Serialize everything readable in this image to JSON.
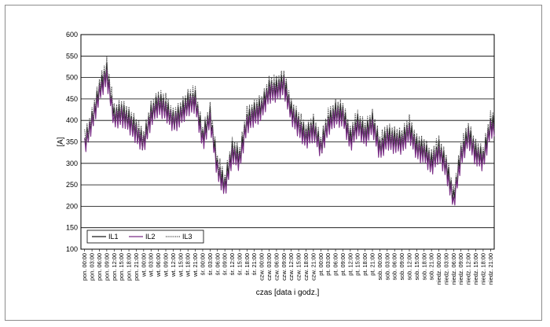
{
  "chart_data": {
    "type": "line",
    "title": "",
    "xlabel": "czas [data i godz.]",
    "ylabel": "[A]",
    "ylim": [
      100,
      600
    ],
    "yticks": [
      100,
      150,
      200,
      250,
      300,
      350,
      400,
      450,
      500,
      550,
      600
    ],
    "grid": true,
    "legend_position": "bottom-left",
    "categories": [
      "pon. 00:00",
      "pon. 03:00",
      "pon. 06:00",
      "pon. 09:00",
      "pon. 12:00",
      "pon. 15:00",
      "pon. 18:00",
      "pon. 21:00",
      "wt. 00:00",
      "wt. 03:00",
      "wt. 06:00",
      "wt. 09:00",
      "wt. 12:00",
      "wt. 15:00",
      "wt. 18:00",
      "wt. 21:00",
      "śr. 00:00",
      "śr. 03:00",
      "śr. 06:00",
      "śr. 09:00",
      "śr. 12:00",
      "śr. 15:00",
      "śr. 18:00",
      "śr. 21:00",
      "czw. 00:00",
      "czw. 03:00",
      "czw. 06:00",
      "czw. 09:00",
      "czw. 12:00",
      "czw. 15:00",
      "czw. 18:00",
      "czw. 21:00",
      "pt. 00:00",
      "pt. 03:00",
      "pt. 06:00",
      "pt. 09:00",
      "pt. 12:00",
      "pt. 15:00",
      "pt. 18:00",
      "pt. 21:00",
      "sob. 00:00",
      "sob. 03:00",
      "sob. 06:00",
      "sob. 09:00",
      "sob. 12:00",
      "sob. 15:00",
      "sob. 18:00",
      "sob. 21:00",
      "niedz. 00:00",
      "niedz. 03:00",
      "niedz. 06:00",
      "niedz. 09:00",
      "niedz. 12:00",
      "niedz. 15:00",
      "niedz. 18:00",
      "niedz. 21:00"
    ],
    "series": [
      {
        "name": "IL1",
        "color": "#1a1a1a",
        "style": "solid",
        "values": [
          345,
          400,
          470,
          510,
          410,
          420,
          400,
          375,
          350,
          415,
          440,
          430,
          400,
          415,
          440,
          450,
          360,
          410,
          290,
          250,
          330,
          310,
          400,
          420,
          430,
          470,
          475,
          490,
          420,
          390,
          365,
          385,
          335,
          395,
          420,
          415,
          355,
          395,
          370,
          395,
          335,
          365,
          355,
          350,
          380,
          340,
          330,
          300,
          335,
          295,
          215,
          320,
          370,
          325,
          310,
          390
        ]
      },
      {
        "name": "IL2",
        "color": "#7a2e86",
        "style": "solid",
        "values": [
          340,
          395,
          460,
          500,
          400,
          410,
          390,
          365,
          345,
          405,
          430,
          420,
          395,
          405,
          430,
          440,
          350,
          400,
          280,
          240,
          320,
          300,
          390,
          410,
          420,
          460,
          465,
          480,
          410,
          380,
          355,
          375,
          330,
          385,
          410,
          405,
          345,
          385,
          360,
          385,
          325,
          355,
          345,
          340,
          370,
          330,
          320,
          290,
          325,
          285,
          205,
          310,
          360,
          315,
          300,
          380
        ]
      },
      {
        "name": "IL3",
        "color": "#444444",
        "style": "dotted",
        "values": [
          355,
          410,
          480,
          525,
          420,
          430,
          410,
          385,
          360,
          425,
          450,
          440,
          410,
          425,
          450,
          460,
          370,
          420,
          300,
          260,
          340,
          320,
          410,
          430,
          440,
          480,
          485,
          500,
          430,
          400,
          375,
          395,
          345,
          405,
          430,
          425,
          365,
          405,
          380,
          405,
          345,
          375,
          365,
          360,
          390,
          350,
          340,
          310,
          345,
          305,
          225,
          330,
          380,
          335,
          320,
          400
        ]
      }
    ]
  }
}
